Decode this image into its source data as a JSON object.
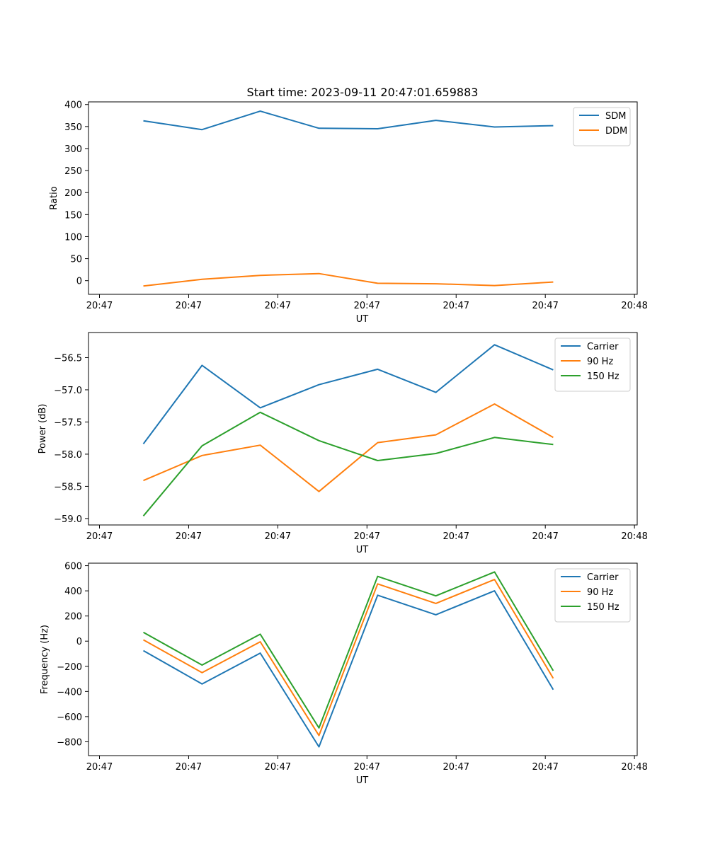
{
  "figure_title": "Start time: 2023-09-11 20:47:01.659883",
  "chart_data": [
    {
      "type": "line",
      "title": "Start time: 2023-09-11 20:47:01.659883",
      "xlabel": "UT",
      "ylabel": "Ratio",
      "xlim": [
        0,
        100
      ],
      "ylim": [
        -31,
        406
      ],
      "x_ticks": [
        {
          "v": 2,
          "label": "20:47"
        },
        {
          "v": 18.25,
          "label": "20:47"
        },
        {
          "v": 34.5,
          "label": "20:47"
        },
        {
          "v": 50.75,
          "label": "20:47"
        },
        {
          "v": 67,
          "label": "20:47"
        },
        {
          "v": 83.25,
          "label": "20:47"
        },
        {
          "v": 99.5,
          "label": "20:48"
        }
      ],
      "y_ticks": [
        {
          "v": 400,
          "label": "400"
        },
        {
          "v": 350,
          "label": "350"
        },
        {
          "v": 300,
          "label": "300"
        },
        {
          "v": 250,
          "label": "250"
        },
        {
          "v": 200,
          "label": "200"
        },
        {
          "v": 150,
          "label": "150"
        },
        {
          "v": 100,
          "label": "100"
        },
        {
          "v": 50,
          "label": "50"
        },
        {
          "v": 0,
          "label": "0"
        }
      ],
      "x": [
        10,
        20.7,
        31.3,
        42,
        52.7,
        63.3,
        74,
        84.7
      ],
      "series": [
        {
          "name": "SDM",
          "color": "#1f77b4",
          "values": [
            363,
            343,
            385,
            346,
            345,
            364,
            349,
            352
          ]
        },
        {
          "name": "DDM",
          "color": "#ff7f0e",
          "values": [
            -12,
            3,
            12,
            16,
            -6,
            -7,
            -11,
            -3
          ]
        }
      ],
      "legend": "top-right"
    },
    {
      "type": "line",
      "xlabel": "UT",
      "ylabel": "Power (dB)",
      "xlim": [
        0,
        100
      ],
      "ylim": [
        -59.1,
        -56.11
      ],
      "x_ticks": [
        {
          "v": 2,
          "label": "20:47"
        },
        {
          "v": 18.25,
          "label": "20:47"
        },
        {
          "v": 34.5,
          "label": "20:47"
        },
        {
          "v": 50.75,
          "label": "20:47"
        },
        {
          "v": 67,
          "label": "20:47"
        },
        {
          "v": 83.25,
          "label": "20:47"
        },
        {
          "v": 99.5,
          "label": "20:48"
        }
      ],
      "y_ticks": [
        {
          "v": -56.5,
          "label": "−56.5"
        },
        {
          "v": -57.0,
          "label": "−57.0"
        },
        {
          "v": -57.5,
          "label": "−57.5"
        },
        {
          "v": -58.0,
          "label": "−58.0"
        },
        {
          "v": -58.5,
          "label": "−58.5"
        },
        {
          "v": -59.0,
          "label": "−59.0"
        }
      ],
      "x": [
        10,
        20.7,
        31.3,
        42,
        52.7,
        63.3,
        74,
        84.7
      ],
      "series": [
        {
          "name": "Carrier",
          "color": "#1f77b4",
          "values": [
            -57.84,
            -56.62,
            -57.28,
            -56.92,
            -56.68,
            -57.04,
            -56.3,
            -56.69
          ]
        },
        {
          "name": "90 Hz",
          "color": "#ff7f0e",
          "values": [
            -58.41,
            -58.02,
            -57.86,
            -58.58,
            -57.82,
            -57.7,
            -57.22,
            -57.74
          ]
        },
        {
          "name": "150 Hz",
          "color": "#2ca02c",
          "values": [
            -58.96,
            -57.87,
            -57.35,
            -57.79,
            -58.1,
            -57.99,
            -57.74,
            -57.85
          ]
        }
      ],
      "legend": "top-right"
    },
    {
      "type": "line",
      "xlabel": "UT",
      "ylabel": "Frequency (Hz)",
      "xlim": [
        0,
        100
      ],
      "ylim": [
        -910,
        620
      ],
      "x_ticks": [
        {
          "v": 2,
          "label": "20:47"
        },
        {
          "v": 18.25,
          "label": "20:47"
        },
        {
          "v": 34.5,
          "label": "20:47"
        },
        {
          "v": 50.75,
          "label": "20:47"
        },
        {
          "v": 67,
          "label": "20:47"
        },
        {
          "v": 83.25,
          "label": "20:47"
        },
        {
          "v": 99.5,
          "label": "20:48"
        }
      ],
      "y_ticks": [
        {
          "v": 600,
          "label": "600"
        },
        {
          "v": 400,
          "label": "400"
        },
        {
          "v": 200,
          "label": "200"
        },
        {
          "v": 0,
          "label": "0"
        },
        {
          "v": -200,
          "label": "−200"
        },
        {
          "v": -400,
          "label": "−400"
        },
        {
          "v": -600,
          "label": "−600"
        },
        {
          "v": -800,
          "label": "−800"
        }
      ],
      "x": [
        10,
        20.7,
        31.3,
        42,
        52.7,
        63.3,
        74,
        84.7
      ],
      "series": [
        {
          "name": "Carrier",
          "color": "#1f77b4",
          "values": [
            -75,
            -340,
            -95,
            -840,
            365,
            210,
            400,
            -385
          ]
        },
        {
          "name": "90 Hz",
          "color": "#ff7f0e",
          "values": [
            10,
            -250,
            -5,
            -750,
            455,
            300,
            490,
            -295
          ]
        },
        {
          "name": "150 Hz",
          "color": "#2ca02c",
          "values": [
            70,
            -190,
            55,
            -690,
            515,
            360,
            550,
            -235
          ]
        }
      ],
      "legend": "top-right"
    }
  ]
}
